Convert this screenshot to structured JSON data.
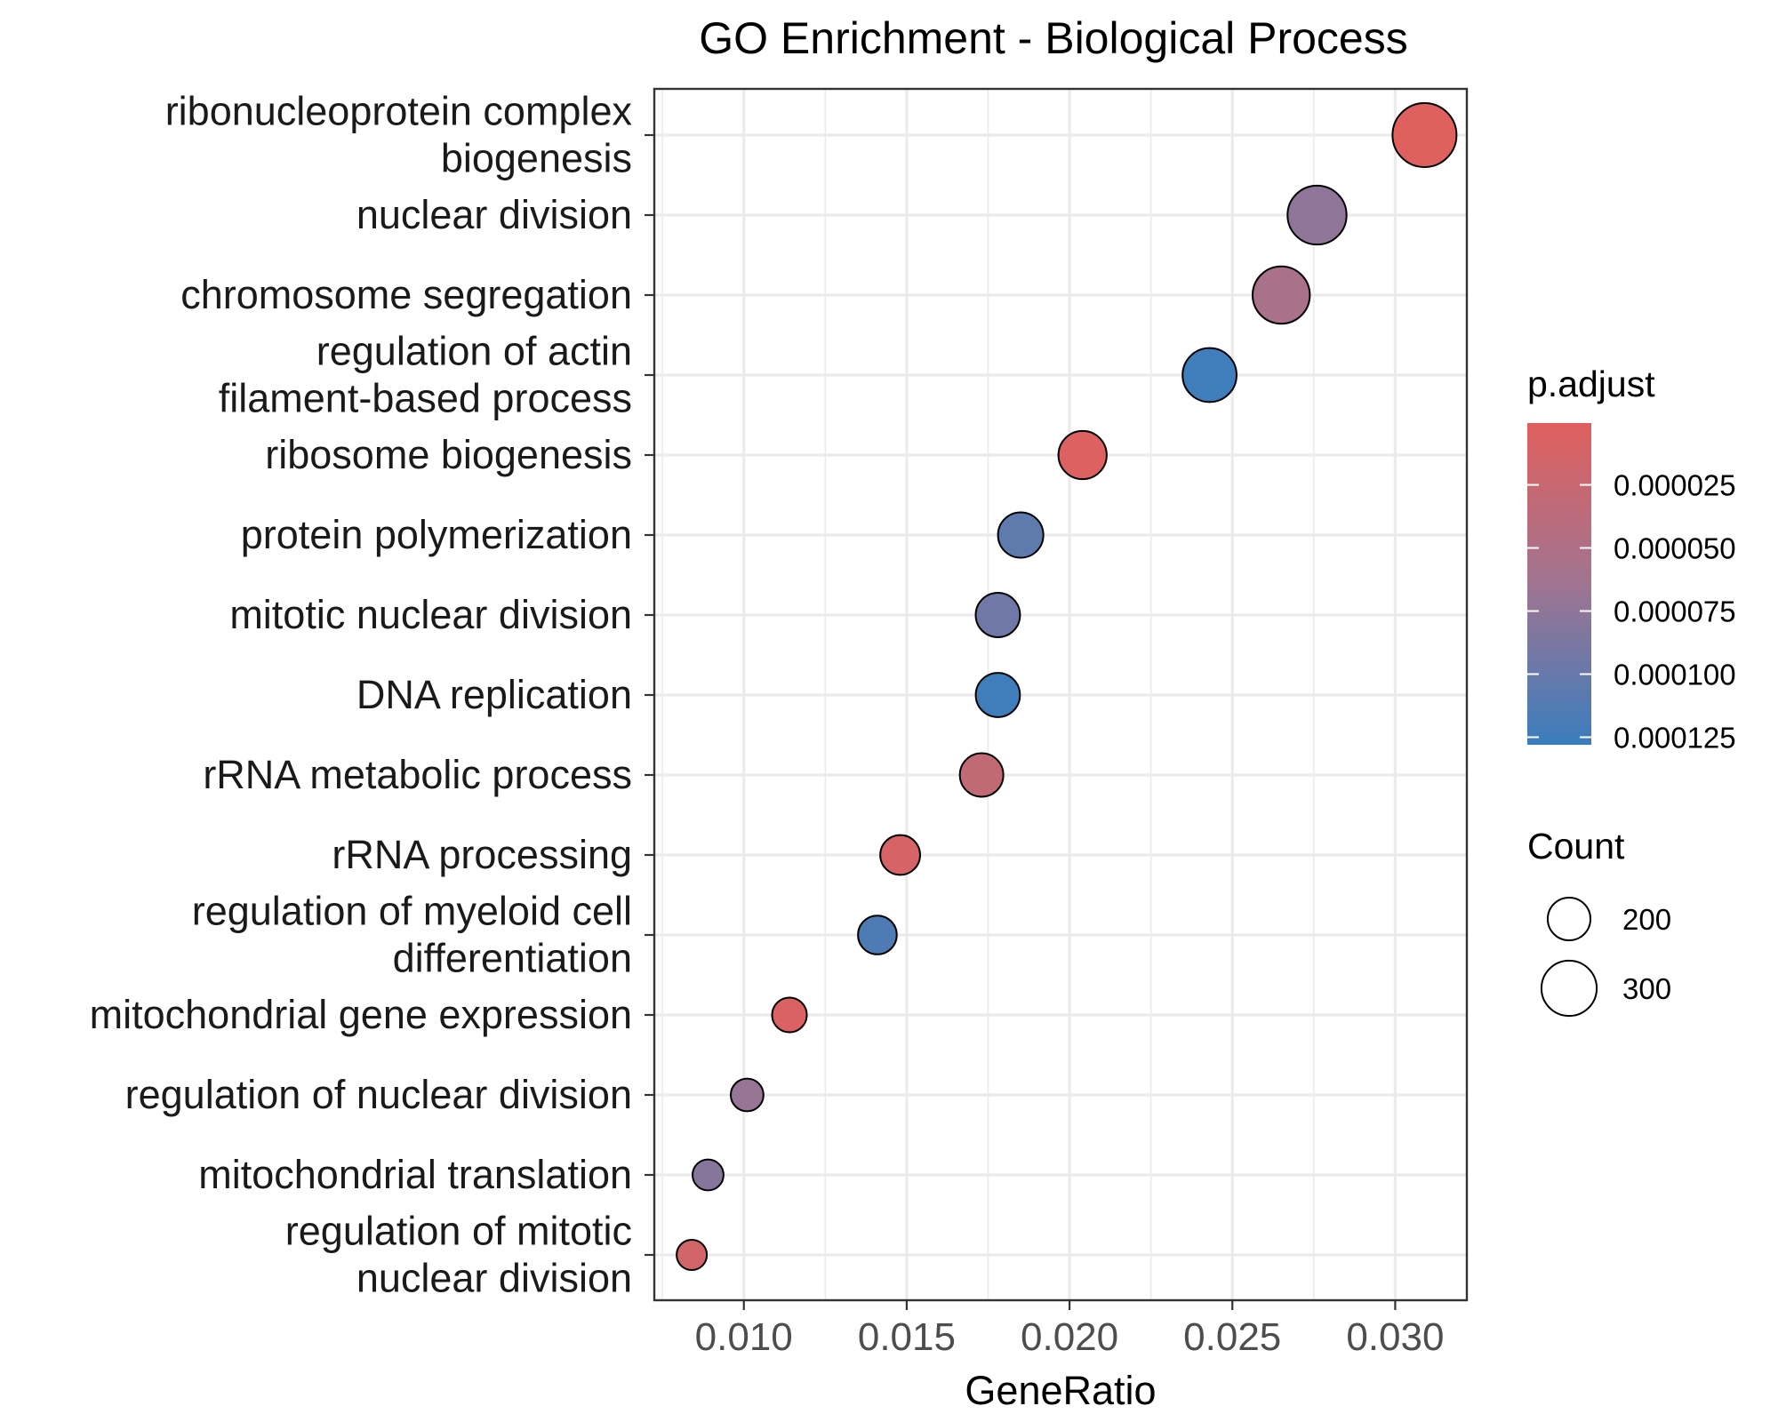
{
  "chart_data": {
    "type": "scatter",
    "title": "GO Enrichment - Biological Process",
    "xlabel": "GeneRatio",
    "ylabel": "",
    "xlim": [
      0.00725,
      0.0322
    ],
    "x_ticks": [
      0.01,
      0.015,
      0.02,
      0.025,
      0.03
    ],
    "x_tick_labels": [
      "0.010",
      "0.015",
      "0.020",
      "0.025",
      "0.030"
    ],
    "grid": true,
    "legend_position": "right",
    "categories": [
      "ribonucleoprotein complex biogenesis",
      "nuclear division",
      "chromosome segregation",
      "regulation of actin filament-based process",
      "ribosome biogenesis",
      "protein polymerization",
      "mitotic nuclear division",
      "DNA replication",
      "rRNA metabolic process",
      "rRNA processing",
      "regulation of myeloid cell differentiation",
      "mitochondrial gene expression",
      "regulation of nuclear division",
      "mitochondrial translation",
      "regulation of mitotic nuclear division"
    ],
    "category_label_lines": [
      [
        "ribonucleoprotein complex",
        "biogenesis"
      ],
      [
        "nuclear division"
      ],
      [
        "chromosome segregation"
      ],
      [
        "regulation of actin",
        "filament-based process"
      ],
      [
        "ribosome biogenesis"
      ],
      [
        "protein polymerization"
      ],
      [
        "mitotic nuclear division"
      ],
      [
        "DNA replication"
      ],
      [
        "rRNA metabolic process"
      ],
      [
        "rRNA processing"
      ],
      [
        "regulation of myeloid cell",
        "differentiation"
      ],
      [
        "mitochondrial gene expression"
      ],
      [
        "regulation of nuclear division"
      ],
      [
        "mitochondrial translation"
      ],
      [
        "regulation of mitotic",
        "nuclear division"
      ]
    ],
    "gene_ratio": [
      0.0309,
      0.0276,
      0.0265,
      0.0243,
      0.0204,
      0.0185,
      0.0178,
      0.0178,
      0.0173,
      0.0148,
      0.0141,
      0.0114,
      0.0101,
      0.0089,
      0.0084
    ],
    "count": [
      370,
      330,
      316,
      290,
      244,
      221,
      213,
      212,
      206,
      177,
      168,
      136,
      120,
      106,
      100
    ],
    "p_adjust": [
      2e-06,
      7.5e-05,
      5.5e-05,
      0.000125,
      3e-06,
      0.000105,
      9.5e-05,
      0.000125,
      3e-05,
      1e-05,
      0.000115,
      6e-06,
      7e-05,
      8e-05,
      1.5e-05
    ],
    "color_legend": {
      "title": "p.adjust",
      "range": [
        5e-07,
        0.000128
      ],
      "ticks": [
        2.5e-05,
        5e-05,
        7.5e-05,
        0.0001,
        0.000125
      ],
      "tick_labels": [
        "0.000025",
        "0.000050",
        "0.000075",
        "0.000100",
        "0.000125"
      ],
      "low_color": "#e0605e",
      "high_color": "#3a7dbd"
    },
    "size_legend": {
      "title": "Count",
      "values": [
        200,
        300
      ],
      "labels": [
        "200",
        "300"
      ]
    }
  }
}
